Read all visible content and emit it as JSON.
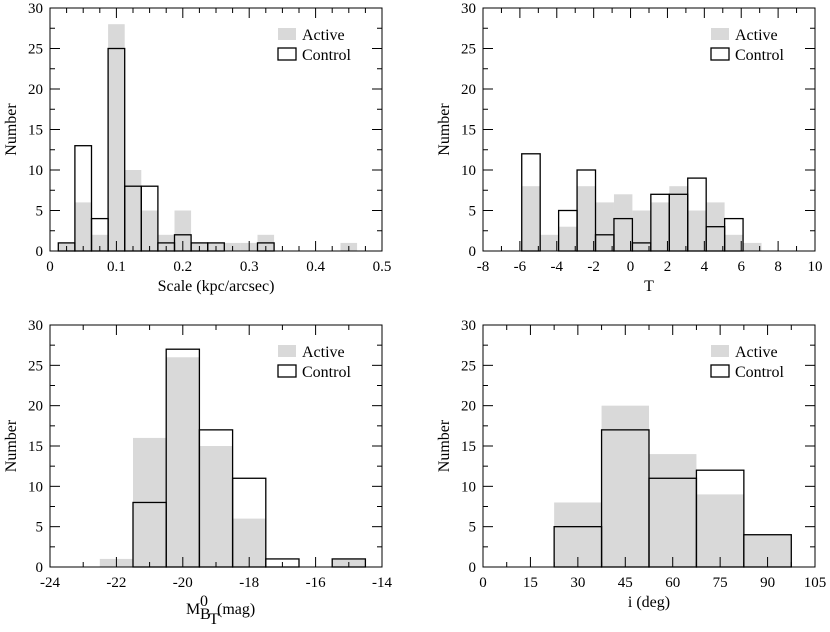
{
  "colors": {
    "active": "#d9d9d9",
    "control_edge": "#000000",
    "axis": "#000000"
  },
  "chart_data": [
    {
      "type": "histogram",
      "xlabel": "Scale (kpc/arcsec)",
      "ylabel": "Number",
      "xlim": [
        0,
        0.5
      ],
      "ylim": [
        0,
        30
      ],
      "xticks": [
        0,
        0.1,
        0.2,
        0.3,
        0.4,
        0.5
      ],
      "xtick_labels": [
        "0",
        "0.1",
        "0.2",
        "0.3",
        "0.4",
        "0.5"
      ],
      "yticks": [
        0,
        5,
        10,
        15,
        20,
        25,
        30
      ],
      "ytick_labels": [
        "0",
        "5",
        "10",
        "15",
        "20",
        "25",
        "30"
      ],
      "xminor": [
        0.025,
        0.05,
        0.075,
        0.125,
        0.15,
        0.175,
        0.225,
        0.25,
        0.275,
        0.325,
        0.35,
        0.375,
        0.425,
        0.45,
        0.475
      ],
      "legend": {
        "position": "top-right",
        "entries": [
          "Active",
          "Control"
        ]
      },
      "series": [
        {
          "name": "Active",
          "bins": [
            [
              0.0125,
              0.0375,
              1
            ],
            [
              0.0375,
              0.0625,
              6
            ],
            [
              0.0625,
              0.0875,
              2
            ],
            [
              0.0875,
              0.1125,
              28
            ],
            [
              0.1125,
              0.1375,
              10
            ],
            [
              0.1375,
              0.1625,
              5
            ],
            [
              0.1625,
              0.1875,
              2
            ],
            [
              0.1875,
              0.2125,
              5
            ],
            [
              0.2125,
              0.2375,
              1
            ],
            [
              0.2375,
              0.2625,
              1
            ],
            [
              0.2625,
              0.2875,
              1
            ],
            [
              0.2875,
              0.3125,
              1
            ],
            [
              0.3125,
              0.3375,
              2
            ],
            [
              0.4375,
              0.4625,
              1
            ]
          ]
        },
        {
          "name": "Control",
          "bins": [
            [
              0.0125,
              0.0375,
              1
            ],
            [
              0.0375,
              0.0625,
              13
            ],
            [
              0.0625,
              0.0875,
              4
            ],
            [
              0.0875,
              0.1125,
              25
            ],
            [
              0.1125,
              0.1375,
              8
            ],
            [
              0.1375,
              0.1625,
              8
            ],
            [
              0.1625,
              0.1875,
              1
            ],
            [
              0.1875,
              0.2125,
              2
            ],
            [
              0.2125,
              0.2375,
              1
            ],
            [
              0.2375,
              0.2625,
              1
            ],
            [
              0.3125,
              0.3375,
              1
            ]
          ]
        }
      ]
    },
    {
      "type": "histogram",
      "xlabel": "T",
      "ylabel": "Number",
      "xlim": [
        -8,
        10
      ],
      "ylim": [
        0,
        30
      ],
      "xticks": [
        -8,
        -6,
        -4,
        -2,
        0,
        2,
        4,
        6,
        8,
        10
      ],
      "xtick_labels": [
        "-8",
        "-6",
        "-4",
        "-2",
        "0",
        "2",
        "4",
        "6",
        "8",
        "10"
      ],
      "yticks": [
        0,
        5,
        10,
        15,
        20,
        25,
        30
      ],
      "ytick_labels": [
        "0",
        "5",
        "10",
        "15",
        "20",
        "25",
        "30"
      ],
      "xminor": [
        -7,
        -5,
        -3,
        -1,
        1,
        3,
        5,
        7,
        9
      ],
      "legend": {
        "position": "top-right",
        "entries": [
          "Active",
          "Control"
        ]
      },
      "series": [
        {
          "name": "Active",
          "bins": [
            [
              -5.9,
              -4.9,
              8
            ],
            [
              -4.9,
              -3.9,
              2
            ],
            [
              -3.9,
              -2.9,
              3
            ],
            [
              -2.9,
              -1.9,
              8
            ],
            [
              -1.9,
              -0.9,
              6
            ],
            [
              -0.9,
              0.1,
              7
            ],
            [
              0.1,
              1.1,
              5
            ],
            [
              1.1,
              2.1,
              6
            ],
            [
              2.1,
              3.1,
              8
            ],
            [
              3.1,
              4.1,
              5
            ],
            [
              4.1,
              5.1,
              6
            ],
            [
              5.1,
              6.1,
              2
            ],
            [
              6.1,
              7.1,
              1
            ]
          ]
        },
        {
          "name": "Control",
          "bins": [
            [
              -5.9,
              -4.9,
              12
            ],
            [
              -3.9,
              -2.9,
              5
            ],
            [
              -2.9,
              -1.9,
              10
            ],
            [
              -1.9,
              -0.9,
              2
            ],
            [
              -0.9,
              0.1,
              4
            ],
            [
              0.1,
              1.1,
              1
            ],
            [
              1.1,
              2.1,
              7
            ],
            [
              2.1,
              3.1,
              7
            ],
            [
              3.1,
              4.1,
              9
            ],
            [
              4.1,
              5.1,
              3
            ],
            [
              5.1,
              6.1,
              4
            ]
          ]
        }
      ]
    },
    {
      "type": "histogram",
      "xlabel": "M",
      "xlabel_sup": "0",
      "xlabel_sub": "B",
      "xlabel_subsub": "T",
      "xlabel_suffix": " (mag)",
      "ylabel": "Number",
      "xlim": [
        -24,
        -14
      ],
      "ylim": [
        0,
        30
      ],
      "xticks": [
        -24,
        -22,
        -20,
        -18,
        -16,
        -14
      ],
      "xtick_labels": [
        "-24",
        "-22",
        "-20",
        "-18",
        "-16",
        "-14"
      ],
      "yticks": [
        0,
        5,
        10,
        15,
        20,
        25,
        30
      ],
      "ytick_labels": [
        "0",
        "5",
        "10",
        "15",
        "20",
        "25",
        "30"
      ],
      "xminor": [
        -23,
        -21,
        -19,
        -17,
        -15
      ],
      "legend": {
        "position": "top-right",
        "entries": [
          "Active",
          "Control"
        ]
      },
      "series": [
        {
          "name": "Active",
          "bins": [
            [
              -22.5,
              -21.5,
              1
            ],
            [
              -21.5,
              -20.5,
              16
            ],
            [
              -20.5,
              -19.5,
              26
            ],
            [
              -19.5,
              -18.5,
              15
            ],
            [
              -18.5,
              -17.5,
              6
            ],
            [
              -15.5,
              -14.5,
              1
            ]
          ]
        },
        {
          "name": "Control",
          "bins": [
            [
              -21.5,
              -20.5,
              8
            ],
            [
              -20.5,
              -19.5,
              27
            ],
            [
              -19.5,
              -18.5,
              17
            ],
            [
              -18.5,
              -17.5,
              11
            ],
            [
              -17.5,
              -16.5,
              1
            ],
            [
              -15.5,
              -14.5,
              1
            ]
          ]
        }
      ]
    },
    {
      "type": "histogram",
      "xlabel": "i (deg)",
      "ylabel": "Number",
      "xlim": [
        0,
        105
      ],
      "ylim": [
        0,
        30
      ],
      "xticks": [
        0,
        15,
        30,
        45,
        60,
        75,
        90,
        105
      ],
      "xtick_labels": [
        "0",
        "15",
        "30",
        "45",
        "60",
        "75",
        "90",
        "105"
      ],
      "yticks": [
        0,
        5,
        10,
        15,
        20,
        25,
        30
      ],
      "ytick_labels": [
        "0",
        "5",
        "10",
        "15",
        "20",
        "25",
        "30"
      ],
      "xminor": [
        7.5,
        22.5,
        37.5,
        52.5,
        67.5,
        82.5,
        97.5
      ],
      "legend": {
        "position": "top-right",
        "entries": [
          "Active",
          "Control"
        ]
      },
      "series": [
        {
          "name": "Active",
          "bins": [
            [
              22.5,
              37.5,
              8
            ],
            [
              37.5,
              52.5,
              20
            ],
            [
              52.5,
              67.5,
              14
            ],
            [
              67.5,
              82.5,
              9
            ],
            [
              82.5,
              97.5,
              4
            ]
          ]
        },
        {
          "name": "Control",
          "bins": [
            [
              22.5,
              37.5,
              5
            ],
            [
              37.5,
              52.5,
              17
            ],
            [
              52.5,
              67.5,
              11
            ],
            [
              67.5,
              82.5,
              12
            ],
            [
              82.5,
              97.5,
              4
            ]
          ]
        }
      ]
    }
  ]
}
